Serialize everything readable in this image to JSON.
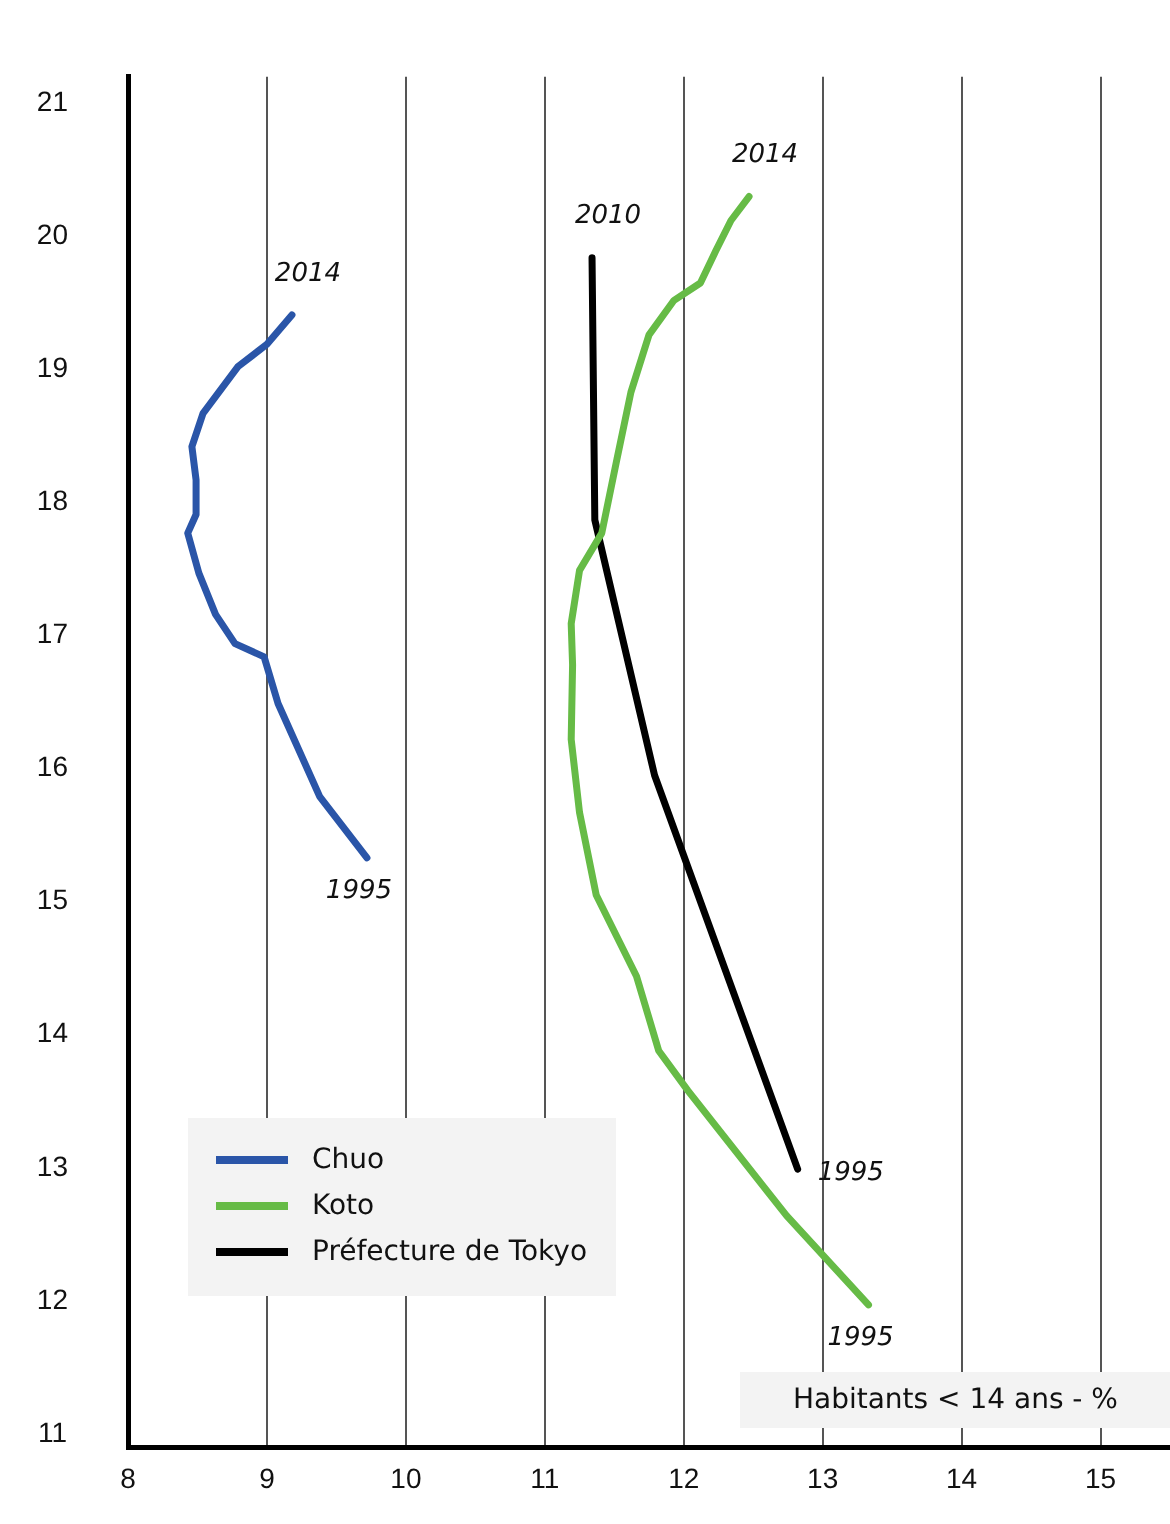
{
  "chart_data": {
    "type": "line",
    "xlabel": "Habitants < 14 ans - %",
    "series": [
      {
        "name": "Chuo",
        "color": "#2a55a8",
        "x": [
          9.72,
          9.38,
          9.08,
          8.98,
          8.77,
          8.63,
          8.51,
          8.43,
          8.49,
          8.49,
          8.46,
          8.54,
          8.79,
          9.0,
          9.18
        ],
        "values": [
          15.33,
          15.79,
          16.49,
          16.84,
          16.94,
          17.16,
          17.47,
          17.77,
          17.91,
          18.17,
          18.42,
          18.67,
          19.02,
          19.19,
          19.41
        ]
      },
      {
        "name": "Koto",
        "color": "#66bb46",
        "x": [
          13.33,
          12.74,
          12.03,
          11.82,
          11.66,
          11.37,
          11.25,
          11.19,
          11.2,
          11.19,
          11.25,
          11.41,
          11.52,
          11.62,
          11.75,
          11.93,
          12.12,
          12.23,
          12.34,
          12.47
        ],
        "values": [
          11.97,
          12.64,
          13.58,
          13.88,
          14.44,
          15.05,
          15.67,
          16.22,
          16.78,
          17.09,
          17.49,
          17.77,
          18.33,
          18.83,
          19.26,
          19.52,
          19.65,
          19.89,
          20.12,
          20.3
        ]
      },
      {
        "name": "Préfecture de Tokyo",
        "color": "#000000",
        "x": [
          12.82,
          11.79,
          11.36,
          11.34
        ],
        "values": [
          12.99,
          15.95,
          17.87,
          19.84
        ]
      }
    ],
    "xlim": [
      8,
      15.5
    ],
    "xticks": [
      8,
      9,
      10,
      11,
      12,
      13,
      14,
      15
    ],
    "ylim": [
      10.9,
      21.2
    ],
    "yticks": [
      11,
      12,
      13,
      14,
      15,
      16,
      17,
      18,
      19,
      20,
      21
    ],
    "grid": "x",
    "legend": "bottom left",
    "marker": "none",
    "line_style": "solid",
    "annotations": [
      {
        "text": "2014",
        "x": 9.18,
        "y": 19.41
      },
      {
        "text": "1995",
        "x": 9.72,
        "y": 15.33
      },
      {
        "text": "2014",
        "x": 12.47,
        "y": 20.3
      },
      {
        "text": "1995",
        "x": 13.33,
        "y": 11.97
      },
      {
        "text": "2010",
        "x": 11.34,
        "y": 19.84
      },
      {
        "text": "1995",
        "x": 12.82,
        "y": 12.99
      }
    ]
  }
}
